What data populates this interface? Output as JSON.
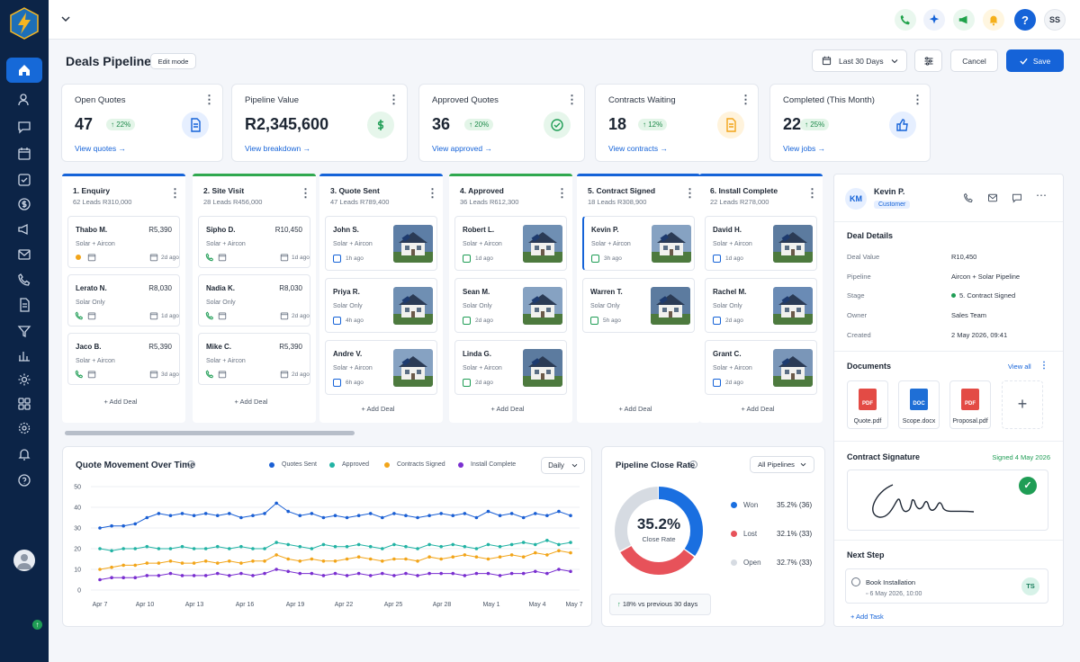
{
  "header": {
    "title": "Deals Pipeline",
    "edit_mode": "Edit mode",
    "date_range": "Last 30 Days",
    "cancel": "Cancel",
    "save": "Save"
  },
  "topbar": {
    "user_initials": "SS",
    "help": "?"
  },
  "stats": [
    {
      "title": "Open Quotes",
      "value": "47",
      "change": "22%",
      "link": "View quotes"
    },
    {
      "title": "Pipeline Value",
      "value": "R2,345,600",
      "link": "View breakdown"
    },
    {
      "title": "Approved Quotes",
      "value": "36",
      "change": "20%",
      "link": "View approved"
    },
    {
      "title": "Contracts Waiting",
      "value": "18",
      "change": "12%",
      "link": "View contracts"
    },
    {
      "title": "Completed (This Month)",
      "value": "22",
      "change": "25%",
      "link": "View jobs"
    }
  ],
  "columns": [
    {
      "title": "1. Enquiry",
      "sub": "62 Leads   R310,000",
      "color": "#1563d8",
      "deals": [
        {
          "name": "Thabo M.",
          "amount": "R5,390",
          "sub": "Solar + Aircon",
          "time": "2d ago"
        },
        {
          "name": "Lerato N.",
          "amount": "R8,030",
          "sub": "Solar Only",
          "time": "1d ago"
        },
        {
          "name": "Jaco B.",
          "amount": "R5,390",
          "sub": "Solar + Aircon",
          "time": "3d ago"
        }
      ]
    },
    {
      "title": "2. Site Visit",
      "sub": "28 Leads   R456,000",
      "color": "#2fa84f",
      "deals": [
        {
          "name": "Sipho D.",
          "amount": "R10,450",
          "sub": "Solar + Aircon",
          "time": "1d ago"
        },
        {
          "name": "Nadia K.",
          "amount": "R8,030",
          "sub": "Solar Only",
          "time": "2d ago"
        },
        {
          "name": "Mike C.",
          "amount": "R5,390",
          "sub": "Solar + Aircon",
          "time": "2d ago"
        }
      ]
    },
    {
      "title": "3. Quote Sent",
      "sub": "47 Leads   R789,400",
      "color": "#1563d8",
      "deals": [
        {
          "name": "John S.",
          "sub": "Solar + Aircon",
          "time": "1h ago"
        },
        {
          "name": "Priya R.",
          "sub": "Solar Only",
          "time": "4h ago"
        },
        {
          "name": "Andre V.",
          "sub": "Solar + Aircon",
          "time": "6h ago"
        }
      ]
    },
    {
      "title": "4. Approved",
      "sub": "36 Leads   R612,300",
      "color": "#2fa84f",
      "deals": [
        {
          "name": "Robert L.",
          "sub": "Solar + Aircon",
          "time": "1d ago"
        },
        {
          "name": "Sean M.",
          "sub": "Solar Only",
          "time": "2d ago"
        },
        {
          "name": "Linda G.",
          "sub": "Solar + Aircon",
          "time": "2d ago"
        }
      ]
    },
    {
      "title": "5. Contract Signed",
      "sub": "18 Leads   R308,900",
      "color": "#1563d8",
      "deals": [
        {
          "name": "Kevin P.",
          "sub": "Solar + Aircon",
          "time": "3h ago"
        },
        {
          "name": "Warren T.",
          "sub": "Solar Only",
          "time": "5h ago"
        }
      ]
    },
    {
      "title": "6. Install Complete",
      "sub": "22 Leads   R278,000",
      "color": "#1563d8",
      "deals": [
        {
          "name": "David H.",
          "sub": "Solar + Aircon",
          "time": "1d ago"
        },
        {
          "name": "Rachel M.",
          "sub": "Solar Only",
          "time": "2d ago"
        },
        {
          "name": "Grant C.",
          "sub": "Solar + Aircon",
          "time": "2d ago"
        }
      ]
    }
  ],
  "add_deal": "+ Add Deal",
  "detail": {
    "initials": "KM",
    "name": "Kevin P.",
    "tag": "Customer",
    "deal_details_title": "Deal Details",
    "fields": [
      {
        "k": "Deal Value",
        "v": "R10,450"
      },
      {
        "k": "Pipeline",
        "v": "Aircon + Solar Pipeline"
      },
      {
        "k": "Stage",
        "v": "5. Contract Signed"
      },
      {
        "k": "Owner",
        "v": "Sales Team"
      },
      {
        "k": "Created",
        "v": "2 May 2026, 09:41"
      }
    ],
    "documents_title": "Documents",
    "view_all": "View all",
    "docs": [
      {
        "type": "PDF",
        "name": "Quote.pdf",
        "color": "#e34b45"
      },
      {
        "type": "DOC",
        "name": "Scope.docx",
        "color": "#1f6fd6"
      },
      {
        "type": "PDF",
        "name": "Proposal.pdf",
        "color": "#e34b45"
      }
    ],
    "signature_title": "Contract Signature",
    "signed": "Signed 4 May 2026",
    "next_step_title": "Next Step",
    "task": "Book Installation",
    "task_date": "6 May 2026, 10:00",
    "task_initials": "TS",
    "add_task": "+ Add Task"
  },
  "chart_data": {
    "type": "line",
    "title": "Quote Movement Over Time",
    "granularity": "Daily",
    "ylim": [
      0,
      50
    ],
    "yticks": [
      0,
      10,
      20,
      30,
      40,
      50
    ],
    "xticks": [
      "Apr 7",
      "Apr 10",
      "Apr 13",
      "Apr 16",
      "Apr 19",
      "Apr 22",
      "Apr 25",
      "Apr 28",
      "May 1",
      "May 4",
      "May 7"
    ],
    "series": [
      {
        "name": "Quotes Sent",
        "color": "#1a5fd4",
        "values": [
          30,
          31,
          31,
          32,
          35,
          37,
          36,
          37,
          36,
          37,
          36,
          37,
          35,
          36,
          37,
          42,
          38,
          36,
          37,
          35,
          36,
          35,
          36,
          37,
          35,
          37,
          36,
          35,
          36,
          37,
          36,
          37,
          35,
          38,
          36,
          37,
          35,
          37,
          36,
          38,
          36
        ]
      },
      {
        "name": "Approved",
        "color": "#22b3a4",
        "values": [
          20,
          19,
          20,
          20,
          21,
          20,
          20,
          21,
          20,
          20,
          21,
          20,
          21,
          20,
          20,
          23,
          22,
          21,
          20,
          22,
          21,
          21,
          22,
          21,
          20,
          22,
          21,
          20,
          22,
          21,
          22,
          21,
          20,
          22,
          21,
          22,
          23,
          22,
          24,
          22,
          23
        ]
      },
      {
        "name": "Contracts Signed",
        "color": "#f2a51a",
        "values": [
          10,
          11,
          12,
          12,
          13,
          13,
          14,
          13,
          13,
          14,
          13,
          14,
          13,
          14,
          14,
          17,
          15,
          14,
          15,
          14,
          14,
          15,
          16,
          15,
          14,
          15,
          15,
          14,
          16,
          15,
          16,
          17,
          16,
          15,
          16,
          17,
          16,
          18,
          17,
          19,
          18
        ]
      },
      {
        "name": "Install Complete",
        "color": "#7a2fd0",
        "values": [
          5,
          6,
          6,
          6,
          7,
          7,
          8,
          7,
          7,
          7,
          8,
          7,
          8,
          7,
          8,
          10,
          9,
          8,
          8,
          7,
          8,
          7,
          8,
          7,
          8,
          7,
          8,
          7,
          8,
          8,
          8,
          7,
          8,
          8,
          7,
          8,
          8,
          9,
          8,
          10,
          9
        ]
      }
    ]
  },
  "close_rate": {
    "title": "Pipeline Close Rate",
    "filter": "All Pipelines",
    "center": "35.2%",
    "center_label": "Close Rate",
    "slices": [
      {
        "name": "Won",
        "pct": 35.2,
        "label": "35.2% (36)",
        "color": "#1a6fe0"
      },
      {
        "name": "Lost",
        "pct": 32.1,
        "label": "32.1% (33)",
        "color": "#e7525a"
      },
      {
        "name": "Open",
        "pct": 32.7,
        "label": "32.7% (33)",
        "color": "#d6dbe2"
      }
    ],
    "footer": "18% vs previous 30 days"
  }
}
